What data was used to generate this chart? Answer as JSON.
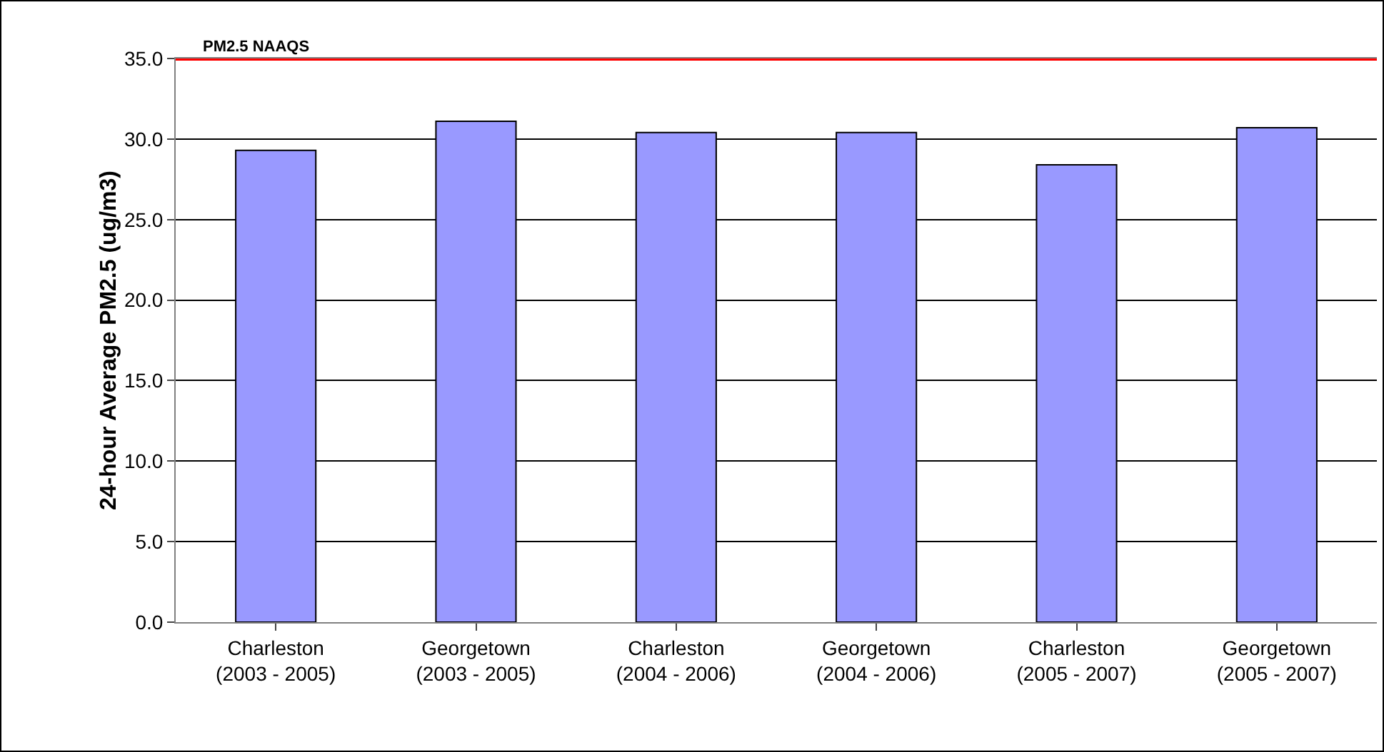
{
  "chart_data": {
    "type": "bar",
    "ylabel": "24-hour Average PM2.5 (ug/m3)",
    "categories": [
      "Charleston\n(2003 - 2005)",
      "Georgetown\n(2003 - 2005)",
      "Charleston\n(2004 - 2006)",
      "Georgetown\n(2004 - 2006)",
      "Charleston\n(2005 - 2007)",
      "Georgetown\n(2005 - 2007)"
    ],
    "values": [
      29.3,
      31.1,
      30.4,
      30.4,
      28.4,
      30.7
    ],
    "color": "#9999ff",
    "ylim": [
      0,
      35
    ],
    "yticks": [
      {
        "value": 0,
        "label": "0.0"
      },
      {
        "value": 5,
        "label": "5.0"
      },
      {
        "value": 10,
        "label": "10.0"
      },
      {
        "value": 15,
        "label": "15.0"
      },
      {
        "value": 20,
        "label": "20.0"
      },
      {
        "value": 25,
        "label": "25.0"
      },
      {
        "value": 30,
        "label": "30.0"
      },
      {
        "value": 35,
        "label": "35.0"
      }
    ],
    "grid": "y",
    "ref_lines": [
      {
        "axis": "y",
        "value": 35,
        "label": "PM2.5 NAAQS",
        "color": "#ff0000"
      }
    ]
  }
}
